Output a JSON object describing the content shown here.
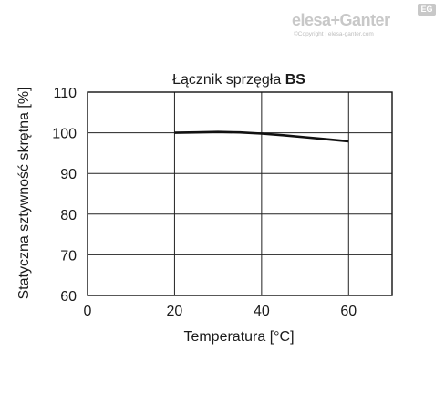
{
  "brand": {
    "logo_text": "elesa+Ganter",
    "badge_text": "EG",
    "copyright": "©Copyright | elesa-ganter.com"
  },
  "chart_data": {
    "type": "line",
    "title_prefix": "Łącznik sprzęgła ",
    "title_bold": "BS",
    "xlabel": "Temperatura [°C]",
    "ylabel": "Statyczna sztywność skrętna [%]",
    "xlim": [
      0,
      70
    ],
    "ylim": [
      60,
      110
    ],
    "xticks": [
      0,
      20,
      40,
      60
    ],
    "yticks": [
      60,
      70,
      80,
      90,
      100,
      110
    ],
    "grid": true,
    "series": [
      {
        "x": [
          20,
          25,
          30,
          35,
          40,
          45,
          50,
          55,
          60
        ],
        "y": [
          100,
          100.1,
          100.2,
          100.1,
          99.8,
          99.4,
          98.9,
          98.4,
          97.9
        ],
        "color": "#111111"
      }
    ]
  }
}
